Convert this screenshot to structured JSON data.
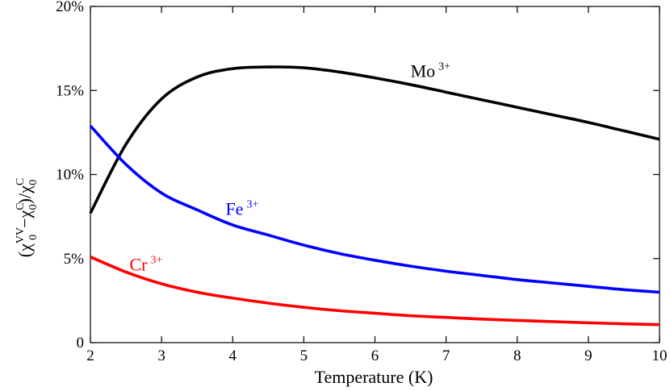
{
  "chart_data": {
    "type": "line",
    "title": "",
    "xlabel": "Temperature (K)",
    "ylabel": {
      "prefix": "(",
      "chi": "χ",
      "sub0": "0",
      "sup_vv": "VV",
      "minus": "−",
      "sup_c": "C",
      "close": ")/"
    },
    "xlim": [
      2,
      10
    ],
    "ylim": [
      0,
      20
    ],
    "xticks": [
      {
        "value": 2,
        "label": "2"
      },
      {
        "value": 3,
        "label": "3"
      },
      {
        "value": 4,
        "label": "4"
      },
      {
        "value": 5,
        "label": "5"
      },
      {
        "value": 6,
        "label": "6"
      },
      {
        "value": 7,
        "label": "7"
      },
      {
        "value": 8,
        "label": "8"
      },
      {
        "value": 9,
        "label": "9"
      },
      {
        "value": 10,
        "label": "10"
      }
    ],
    "yticks": [
      {
        "value": 0,
        "label": "0"
      },
      {
        "value": 5,
        "label": "5%"
      },
      {
        "value": 10,
        "label": "10%"
      },
      {
        "value": 15,
        "label": "15%"
      },
      {
        "value": 20,
        "label": "20%"
      }
    ],
    "grid": false,
    "x": [
      2,
      2.5,
      3,
      3.5,
      4,
      4.5,
      5,
      5.5,
      6,
      6.5,
      7,
      7.5,
      8,
      8.5,
      9,
      9.5,
      10
    ],
    "series": [
      {
        "name": "Mo",
        "sup": "3+",
        "color": "#000000",
        "label_at": [
          6.5,
          15.8
        ],
        "values": [
          7.7,
          11.8,
          14.5,
          15.8,
          16.3,
          16.4,
          16.35,
          16.1,
          15.75,
          15.35,
          14.9,
          14.45,
          14.0,
          13.55,
          13.1,
          12.6,
          12.1
        ]
      },
      {
        "name": "Fe",
        "sup": "3+",
        "color": "#0000ff",
        "label_at": [
          3.9,
          7.6
        ],
        "values": [
          12.9,
          10.6,
          8.9,
          7.9,
          7.0,
          6.4,
          5.8,
          5.3,
          4.9,
          4.55,
          4.25,
          4.0,
          3.75,
          3.55,
          3.35,
          3.15,
          3.0
        ]
      },
      {
        "name": "Cr",
        "sup": "3+",
        "color": "#ff0000",
        "label_at": [
          2.55,
          4.3
        ],
        "values": [
          5.1,
          4.2,
          3.5,
          3.0,
          2.65,
          2.35,
          2.1,
          1.9,
          1.75,
          1.6,
          1.5,
          1.4,
          1.32,
          1.25,
          1.18,
          1.12,
          1.07
        ]
      }
    ]
  }
}
